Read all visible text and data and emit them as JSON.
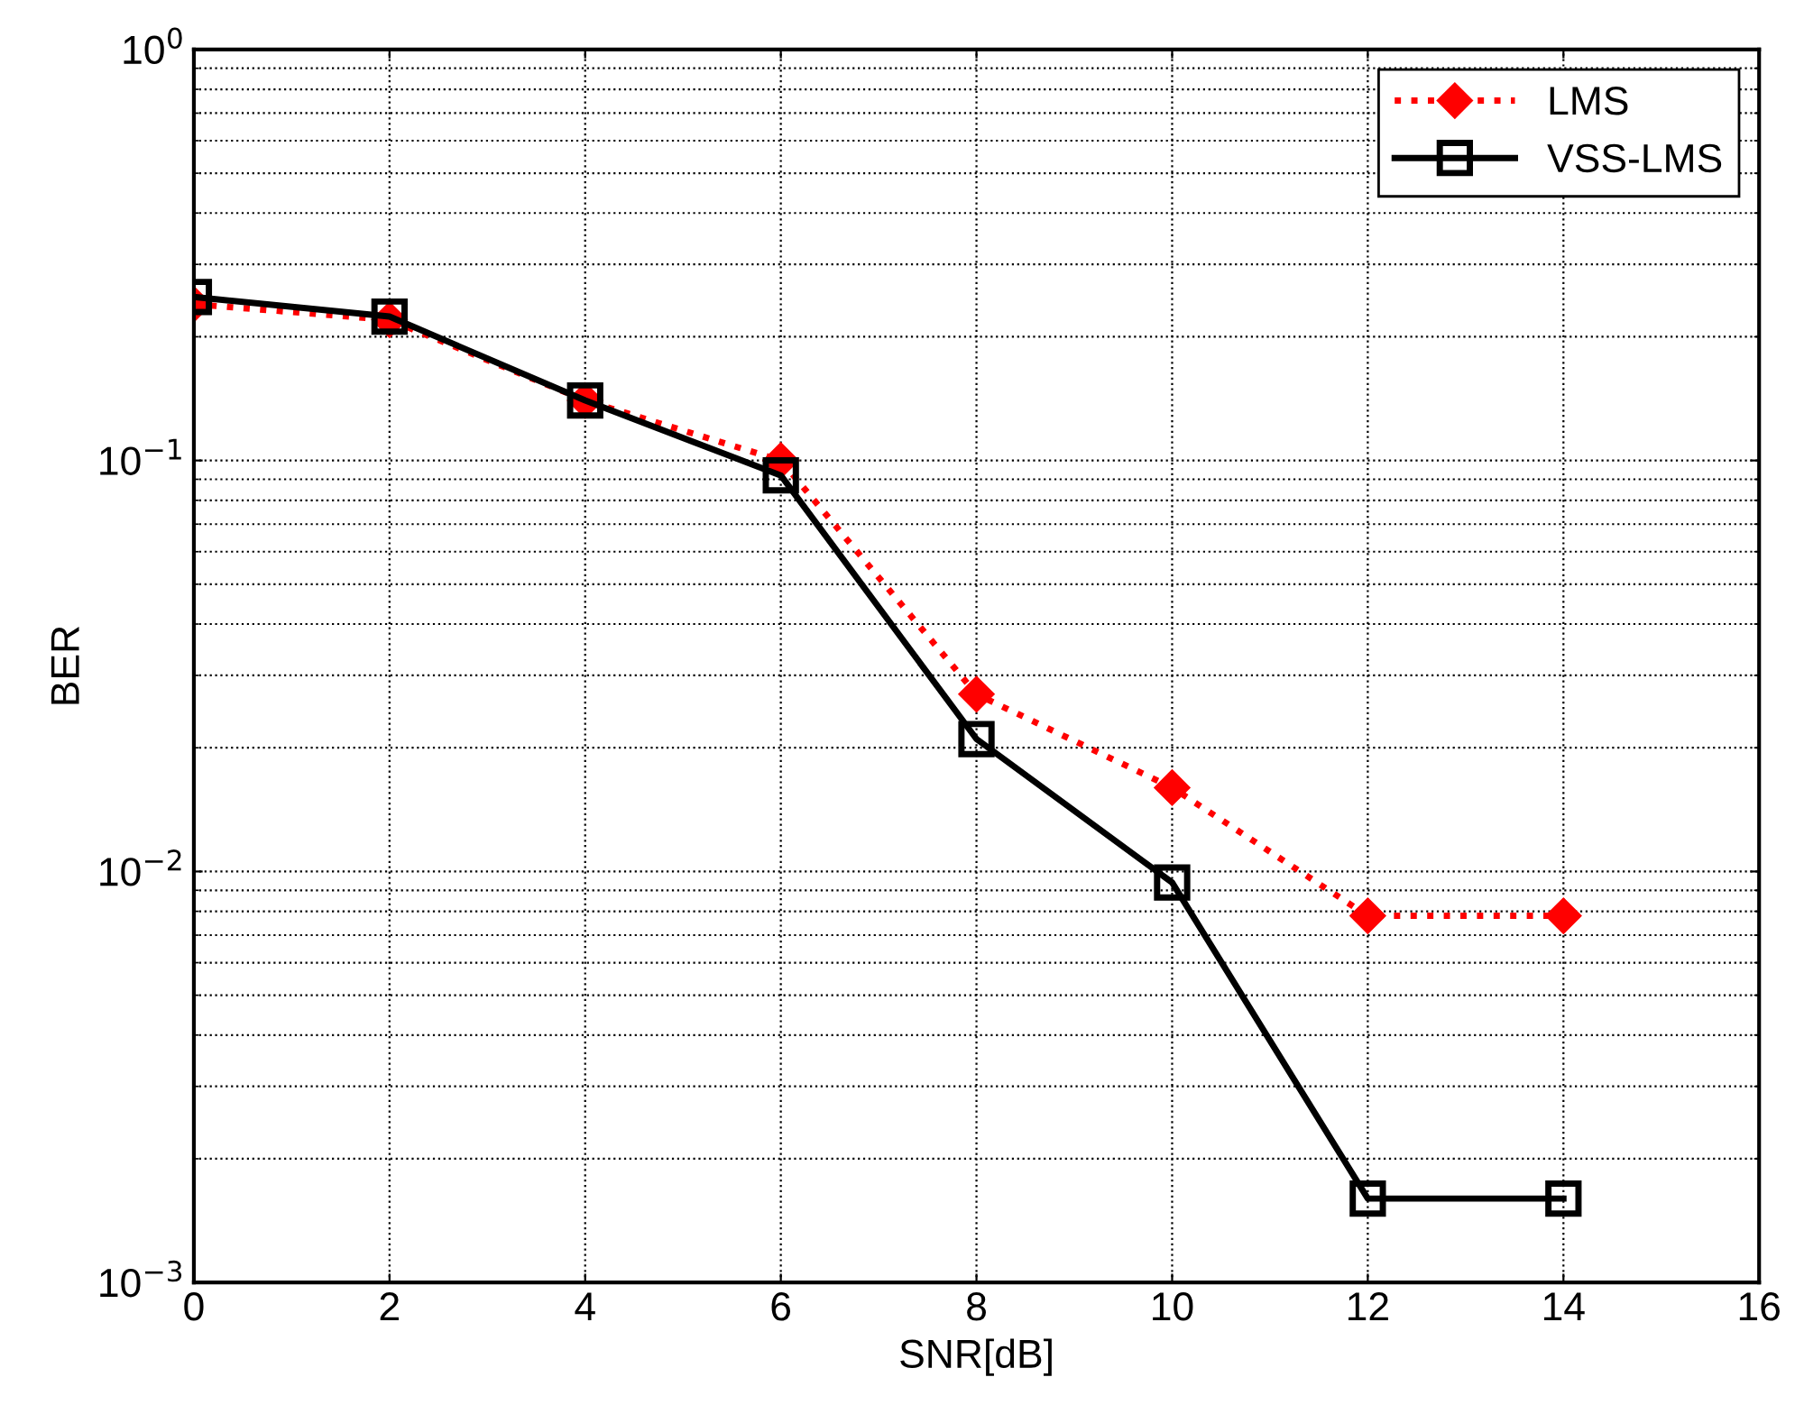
{
  "chart_data": {
    "type": "line",
    "xlabel": "SNR[dB]",
    "ylabel": "BER",
    "log": "y",
    "x": [
      0,
      2,
      4,
      6,
      8,
      10,
      12,
      14
    ],
    "series": [
      {
        "name": "LMS",
        "color": "#ff0000",
        "marker": "diamond",
        "line_style": "dotted",
        "values": [
          0.24,
          0.22,
          0.14,
          0.1,
          0.027,
          0.016,
          0.0078,
          0.0078
        ]
      },
      {
        "name": "VSS-LMS",
        "color": "#000000",
        "marker": "square",
        "line_style": "solid",
        "values": [
          0.25,
          0.224,
          0.14,
          0.092,
          0.021,
          0.0094,
          0.0016,
          0.0016
        ]
      }
    ],
    "xlim": [
      0,
      16
    ],
    "xticks": [
      0,
      2,
      4,
      6,
      8,
      10,
      12,
      14,
      16
    ],
    "ylim": [
      0.001,
      1
    ],
    "yticks": [
      {
        "value": 0.001,
        "label": "10$^{−3}$"
      },
      {
        "value": 0.01,
        "label": "10$^{−2}$"
      },
      {
        "value": 0.1,
        "label": "10$^{−1}$"
      },
      {
        "value": 1,
        "label": "10$^{0}$"
      }
    ],
    "grid": true,
    "legend": "top right"
  }
}
